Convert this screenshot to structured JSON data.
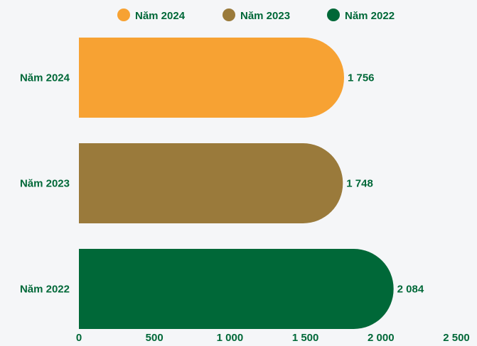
{
  "chart_data": {
    "type": "bar",
    "orientation": "horizontal",
    "categories": [
      "Năm 2024",
      "Năm 2023",
      "Năm 2022"
    ],
    "values": [
      1756,
      1748,
      2084
    ],
    "value_labels": [
      "1 756",
      "1 748",
      "2 084"
    ],
    "xlim": [
      0,
      2500
    ],
    "x_ticks": [
      0,
      500,
      1000,
      1500,
      2000,
      2500
    ],
    "x_tick_labels": [
      "0",
      "500",
      "1 000",
      "1 500",
      "2 000",
      "2 500"
    ],
    "title": "",
    "xlabel": "",
    "ylabel": "",
    "grid": false,
    "legend_position": "top-center",
    "legend": [
      {
        "label": "Năm 2024",
        "color": "#f7a233"
      },
      {
        "label": "Năm 2023",
        "color": "#9a7a3b"
      },
      {
        "label": "Năm 2022",
        "color": "#006838"
      }
    ],
    "colors": [
      "#f7a233",
      "#9a7a3b",
      "#006838"
    ],
    "label_color": "#006838"
  }
}
